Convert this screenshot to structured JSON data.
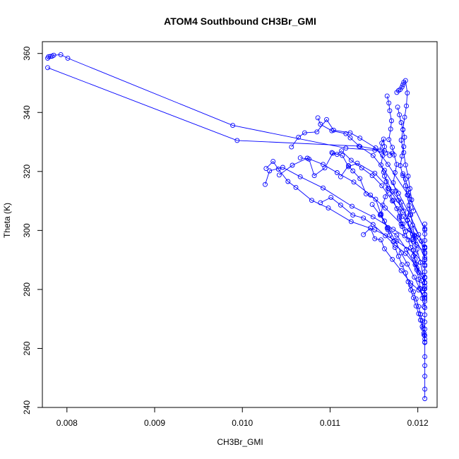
{
  "chart_data": {
    "type": "line",
    "title": "ATOM4 Southbound CH3Br_GMI",
    "xlabel": "CH3Br_GMI",
    "ylabel": "Theta (K)",
    "xlim": [
      0.00772,
      0.01222
    ],
    "ylim": [
      240,
      364
    ],
    "xticks": [
      0.008,
      0.009,
      0.01,
      0.011,
      0.012
    ],
    "xtick_labels": [
      "0.008",
      "0.009",
      "0.010",
      "0.011",
      "0.012"
    ],
    "yticks": [
      240,
      260,
      280,
      300,
      320,
      340,
      360
    ],
    "ytick_labels": [
      "240",
      "260",
      "280",
      "300",
      "320",
      "340",
      "360"
    ],
    "grid": false,
    "legend": "none",
    "marker": "open-circle",
    "color": "#0000ff",
    "series": [
      {
        "x": [
          0.00778,
          0.00779,
          0.00781,
          0.00783,
          0.00785,
          0.00793,
          0.00801,
          0.00989,
          0.01118,
          0.01151,
          0.01163
        ],
        "y": [
          358.4,
          358.9,
          359.0,
          359.1,
          359.4,
          359.6,
          358.4,
          335.6,
          327.9,
          327.2,
          326.2
        ]
      },
      {
        "x": [
          0.00778,
          0.00994,
          0.01133,
          0.01162,
          0.01171,
          0.01168
        ],
        "y": [
          355.2,
          330.5,
          328.6,
          327.0,
          326.2,
          325.4
        ]
      },
      {
        "x": [
          0.01026,
          0.01031,
          0.01046,
          0.01066,
          0.01092,
          0.01125,
          0.01149,
          0.01172,
          0.01195,
          0.01208
        ],
        "y": [
          315.6,
          320.2,
          321.4,
          318.2,
          314.4,
          308.2,
          304.6,
          300.4,
          296.2,
          292.6
        ]
      },
      {
        "x": [
          0.01027,
          0.01035,
          0.01041,
          0.01052,
          0.01061,
          0.01079,
          0.01098,
          0.01124,
          0.01151,
          0.01176,
          0.01197,
          0.01208
        ],
        "y": [
          321.0,
          323.4,
          320.8,
          316.6,
          314.6,
          310.2,
          307.6,
          303.0,
          300.2,
          296.4,
          292.0,
          288.4
        ]
      },
      {
        "x": [
          0.01042,
          0.01057,
          0.01074,
          0.01092,
          0.01108,
          0.01127,
          0.01146,
          0.01163,
          0.01181,
          0.01198,
          0.01208
        ],
        "y": [
          318.8,
          322.1,
          324.5,
          322.4,
          319.6,
          316.4,
          312.0,
          307.6,
          302.2,
          297.8,
          294.0
        ]
      },
      {
        "x": [
          0.01056,
          0.01064,
          0.01071,
          0.01085,
          0.01096,
          0.01104,
          0.01123,
          0.01134,
          0.01152,
          0.01166,
          0.01189,
          0.01208
        ],
        "y": [
          328.3,
          331.6,
          333.1,
          333.4,
          337.6,
          334.0,
          333.1,
          331.3,
          328.0,
          322.4,
          312.0,
          300.2
        ]
      },
      {
        "x": [
          0.01066,
          0.01076,
          0.01082,
          0.01094,
          0.01103,
          0.01114,
          0.01121,
          0.01131,
          0.01151,
          0.01167,
          0.01184,
          0.01201,
          0.01208
        ],
        "y": [
          324.6,
          324.2,
          318.6,
          321.2,
          326.2,
          325.4,
          321.6,
          322.8,
          319.4,
          314.2,
          306.6,
          298.6,
          294.2
        ]
      },
      {
        "x": [
          0.01086,
          0.01089,
          0.01102,
          0.01118,
          0.01123,
          0.01134,
          0.01149,
          0.01162,
          0.01178,
          0.01191,
          0.01204,
          0.01208
        ],
        "y": [
          338.2,
          336.0,
          333.8,
          332.8,
          331.4,
          328.4,
          325.4,
          320.4,
          312.6,
          305.4,
          296.4,
          290.2
        ]
      },
      {
        "x": [
          0.01102,
          0.01108,
          0.01113,
          0.01124,
          0.01136,
          0.01148,
          0.01159,
          0.01171,
          0.01183,
          0.01196,
          0.01208
        ],
        "y": [
          326.4,
          325.8,
          327.0,
          323.8,
          321.2,
          318.6,
          315.2,
          310.0,
          304.8,
          298.0,
          290.8
        ]
      },
      {
        "x": [
          0.01112,
          0.01121,
          0.01126,
          0.01134,
          0.01141,
          0.01152,
          0.01158,
          0.01166,
          0.01176,
          0.01187,
          0.01199,
          0.01208
        ],
        "y": [
          318.2,
          322.0,
          320.2,
          317.6,
          312.4,
          310.6,
          305.6,
          300.2,
          298.4,
          293.6,
          287.2,
          282.4
        ]
      },
      {
        "x": [
          0.01089,
          0.01101,
          0.01112,
          0.01126,
          0.01138,
          0.01149,
          0.01163,
          0.01174,
          0.01186,
          0.01197,
          0.01208
        ],
        "y": [
          309.4,
          311.2,
          308.6,
          305.2,
          304.2,
          302.0,
          298.2,
          295.0,
          292.2,
          288.4,
          284.0
        ]
      },
      {
        "x": [
          0.01138,
          0.01146,
          0.01151,
          0.01158,
          0.01162,
          0.01171,
          0.01181,
          0.01192,
          0.01201,
          0.01208
        ],
        "y": [
          298.6,
          300.8,
          297.2,
          296.8,
          293.8,
          290.2,
          286.4,
          282.2,
          279.8,
          277.4
        ]
      },
      {
        "x": [
          0.01157,
          0.01159,
          0.01161,
          0.01162,
          0.0116,
          0.01158,
          0.01161,
          0.01164,
          0.01166,
          0.01163,
          0.0116,
          0.01158,
          0.01162,
          0.01165,
          0.01168,
          0.01172
        ],
        "y": [
          327.2,
          329.6,
          331.0,
          328.4,
          325.4,
          322.2,
          319.8,
          316.6,
          314.2,
          311.4,
          308.6,
          305.2,
          303.2,
          300.8,
          298.4,
          296.2
        ]
      },
      {
        "x": [
          0.01165,
          0.01167,
          0.01168,
          0.0117,
          0.01169,
          0.01167,
          0.01171,
          0.01173,
          0.01176,
          0.01174,
          0.01172,
          0.01175,
          0.01178,
          0.01181,
          0.01179,
          0.01182,
          0.01185
        ],
        "y": [
          345.6,
          343.2,
          340.6,
          337.2,
          334.4,
          330.8,
          328.2,
          325.6,
          322.4,
          319.6,
          316.2,
          313.4,
          310.2,
          307.6,
          304.2,
          301.4,
          298.2
        ]
      },
      {
        "x": [
          0.01176,
          0.01178,
          0.0118,
          0.01182,
          0.01183,
          0.01184,
          0.01186,
          0.01188,
          0.01187,
          0.01185,
          0.01183,
          0.01181,
          0.01184,
          0.01186,
          0.01189,
          0.01191,
          0.01193,
          0.01195
        ],
        "y": [
          346.8,
          347.4,
          347.8,
          348.6,
          349.4,
          350.2,
          350.8,
          346.6,
          342.2,
          338.4,
          334.2,
          330.6,
          326.4,
          322.2,
          318.4,
          314.2,
          310.4,
          306.6
        ]
      },
      {
        "x": [
          0.01177,
          0.01179,
          0.01181,
          0.01183,
          0.01185,
          0.01184,
          0.01182,
          0.0118,
          0.01183,
          0.01186,
          0.01188,
          0.0119,
          0.01192,
          0.01194,
          0.01196,
          0.01198
        ],
        "y": [
          341.8,
          339.2,
          336.6,
          334.2,
          331.6,
          328.4,
          325.2,
          322.0,
          318.6,
          315.2,
          312.0,
          308.6,
          305.2,
          301.8,
          298.4,
          295.2
        ]
      },
      {
        "x": [
          0.01183,
          0.01186,
          0.01189,
          0.01191,
          0.0119,
          0.01188,
          0.01191,
          0.01193,
          0.01195,
          0.01197,
          0.01199,
          0.01201,
          0.01203,
          0.01205,
          0.01207
        ],
        "y": [
          319.2,
          317.4,
          313.8,
          310.6,
          307.2,
          303.6,
          300.2,
          296.8,
          293.4,
          290.2,
          286.6,
          283.4,
          280.2,
          277.0,
          274.2
        ]
      },
      {
        "x": [
          0.01168,
          0.01172,
          0.01176,
          0.01179,
          0.01183,
          0.01186,
          0.01189,
          0.01192,
          0.01195,
          0.01198,
          0.01201,
          0.01204,
          0.01207,
          0.01208
        ],
        "y": [
          312.4,
          310.2,
          307.4,
          304.8,
          302.2,
          299.6,
          296.8,
          294.2,
          291.4,
          288.6,
          285.8,
          283.0,
          280.2,
          278.4
        ]
      },
      {
        "x": [
          0.01174,
          0.01178,
          0.01182,
          0.01186,
          0.01189,
          0.01192,
          0.01195,
          0.01198,
          0.01201,
          0.01203,
          0.01205,
          0.01207,
          0.01208
        ],
        "y": [
          294.2,
          291.2,
          288.4,
          285.6,
          282.6,
          279.8,
          277.2,
          274.4,
          271.8,
          269.6,
          267.4,
          265.2,
          263.2
        ]
      },
      {
        "x": [
          0.01192,
          0.01195,
          0.01198,
          0.01201,
          0.01203,
          0.01205,
          0.01206,
          0.01207,
          0.01208,
          0.01208,
          0.01208,
          0.01208,
          0.01208,
          0.01208
        ],
        "y": [
          281.4,
          279.2,
          276.8,
          274.2,
          271.6,
          269.4,
          266.8,
          264.6,
          262.0,
          257.2,
          254.2,
          250.6,
          246.2,
          243.0
        ]
      },
      {
        "x": [
          0.01208,
          0.01208,
          0.01208,
          0.01208,
          0.01208,
          0.01208,
          0.01208,
          0.01208,
          0.01208,
          0.01208,
          0.01208,
          0.01208,
          0.01208,
          0.01208,
          0.01208,
          0.01208,
          0.01208,
          0.01208,
          0.01208,
          0.01208
        ],
        "y": [
          302.2,
          300.6,
          298.8,
          296.6,
          294.4,
          292.2,
          290.0,
          288.0,
          286.0,
          284.2,
          282.2,
          280.2,
          278.2,
          276.0,
          273.8,
          271.4,
          269.0,
          266.6,
          264.4,
          262.2
        ]
      },
      {
        "x": [
          0.01162,
          0.01171,
          0.01181,
          0.01188,
          0.01194,
          0.01199,
          0.01203,
          0.01206,
          0.01208
        ],
        "y": [
          318.4,
          313.2,
          309.6,
          303.4,
          298.8,
          293.6,
          289.2,
          284.8,
          281.0
        ]
      },
      {
        "x": [
          0.01148,
          0.01157,
          0.01166,
          0.01174,
          0.01181,
          0.01188,
          0.01196,
          0.01202,
          0.01208
        ],
        "y": [
          308.8,
          305.2,
          301.0,
          296.6,
          292.4,
          288.6,
          284.2,
          280.4,
          276.8
        ]
      }
    ]
  }
}
